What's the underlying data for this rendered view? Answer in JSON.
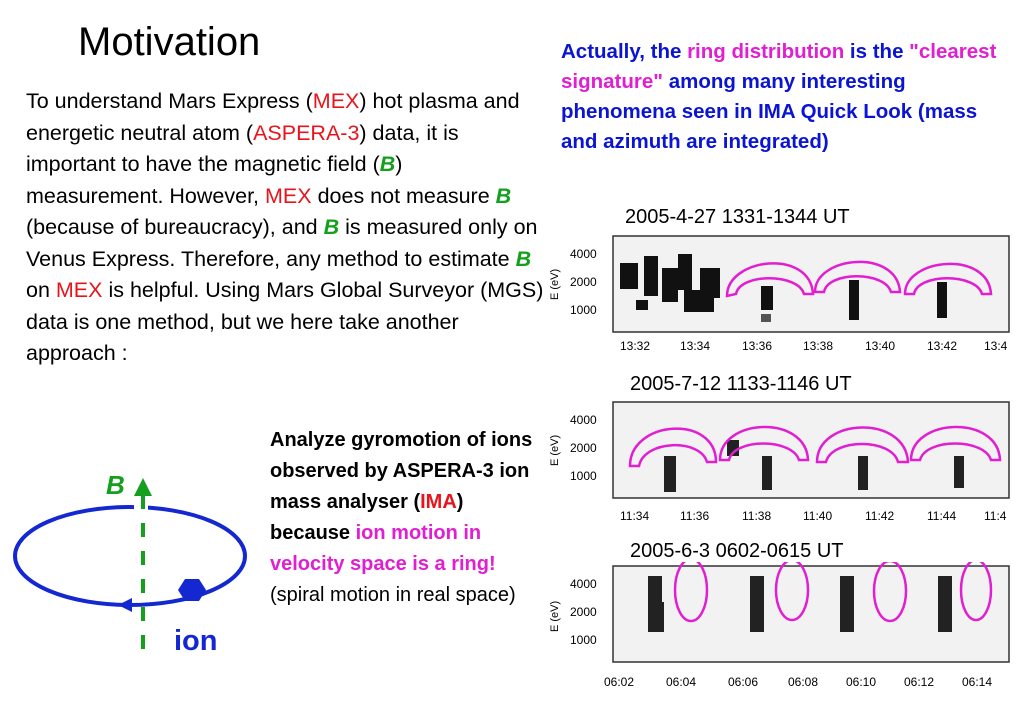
{
  "title": "Motivation",
  "intro": {
    "p1": "To understand Mars Express (",
    "mex1": "MEX",
    "p2": ") hot plasma and energetic neutral atom (",
    "aspera": "ASPERA-3",
    "p3": ") data, it is important to have the magnetic field (",
    "b1": "B",
    "p4": ") measurement.  However, ",
    "mex2": "MEX",
    "p5": " does not measure ",
    "b2": "B",
    "p6": " (because of bureaucracy), and ",
    "b3": "B",
    "p7": " is measured only on Venus Express.  Therefore, any method to estimate ",
    "b4": "B",
    "p8": " on ",
    "mex3": "MEX",
    "p9": " is helpful. Using Mars Global Surveyor (MGS) data is one method, but we here take another approach :"
  },
  "right": {
    "t1": "Actually, the ",
    "t2": "ring distribution",
    "t3": " is the ",
    "t4": "\"clearest signature\"",
    "t5": " among many interesting phenomena seen in IMA Quick Look (mass and azimuth are integrated)"
  },
  "gyro": {
    "t1": "Analyze gyromotion of ions observed by ASPERA-3 ion mass analyser (",
    "t2": "IMA",
    "t3": ") because ",
    "t4": "ion motion in velocity space is a ring!",
    "t5": " (spiral motion in real space)"
  },
  "diagram": {
    "b_label": "B",
    "ion_label": "ion",
    "colors": {
      "ring": "#1428d2",
      "field": "#14a01e",
      "ion": "#1428d2"
    }
  },
  "plots": [
    {
      "title": "2005-4-27  1331-1344 UT",
      "ylabel": "E (eV)",
      "yticks": [
        "4000",
        "2000",
        "1000"
      ],
      "xticks": [
        "13:32",
        "13:34",
        "13:36",
        "13:38",
        "13:40",
        "13:42",
        "13:4"
      ]
    },
    {
      "title": "2005-7-12  1133-1146 UT",
      "ylabel": "E (eV)",
      "yticks": [
        "4000",
        "2000",
        "1000"
      ],
      "xticks": [
        "11:34",
        "11:36",
        "11:38",
        "11:40",
        "11:42",
        "11:44",
        "11:4"
      ]
    },
    {
      "title": "2005-6-3  0602-0615 UT",
      "ylabel": "E (eV)",
      "yticks": [
        "4000",
        "2000",
        "1000"
      ],
      "xticks": [
        "06:02",
        "06:04",
        "06:06",
        "06:08",
        "06:10",
        "06:12",
        "06:14"
      ]
    }
  ],
  "colors": {
    "red": "#e8141c",
    "green": "#14a01e",
    "blue": "#0a14d2",
    "magenta": "#e11ed2"
  }
}
